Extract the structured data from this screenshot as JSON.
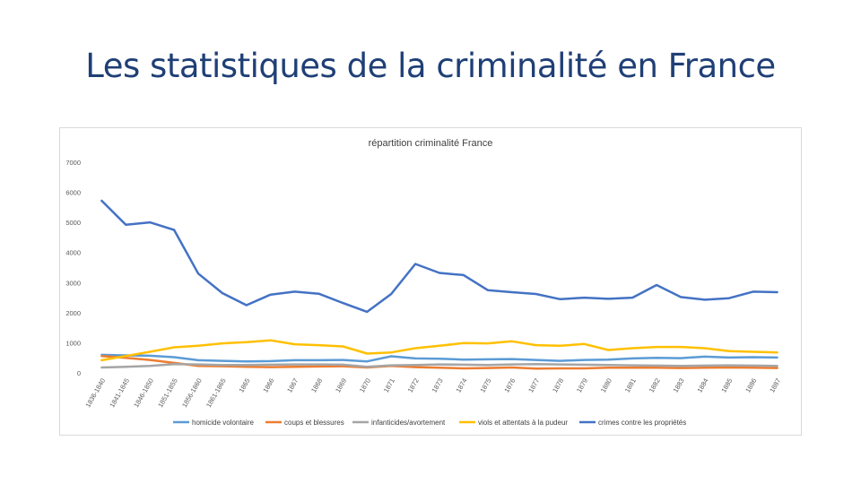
{
  "slide": {
    "title": "Les statistiques de la criminalité en France"
  },
  "chart_data": {
    "type": "line",
    "title": "répartition criminalité France",
    "ylim": [
      0,
      7000
    ],
    "yticks": [
      0,
      1000,
      2000,
      3000,
      4000,
      5000,
      6000,
      7000
    ],
    "grid": false,
    "legend_position": "bottom",
    "categories": [
      "1836-1840",
      "1841-1845",
      "1846-1850",
      "1851-1855",
      "1856-1860",
      "1861-1865",
      "1865",
      "1866",
      "1867",
      "1868",
      "1869",
      "1870",
      "1871",
      "1872",
      "1873",
      "1874",
      "1875",
      "1876",
      "1877",
      "1878",
      "1879",
      "1880",
      "1881",
      "1882",
      "1883",
      "1884",
      "1885",
      "1886",
      "1887"
    ],
    "series": [
      {
        "name": "homicide volontaire",
        "color": "#5b9bd5",
        "values": [
          600,
          580,
          570,
          520,
          420,
          400,
          380,
          390,
          420,
          420,
          430,
          380,
          550,
          480,
          470,
          440,
          450,
          460,
          430,
          400,
          430,
          440,
          480,
          500,
          490,
          540,
          510,
          520,
          510
        ]
      },
      {
        "name": "coups et blessures",
        "color": "#ed7d31",
        "values": [
          560,
          500,
          430,
          330,
          230,
          220,
          200,
          190,
          200,
          210,
          220,
          180,
          230,
          190,
          170,
          150,
          160,
          180,
          140,
          150,
          150,
          170,
          170,
          170,
          160,
          170,
          180,
          170,
          160
        ]
      },
      {
        "name": "infanticides/avortement",
        "color": "#a5a5a5",
        "values": [
          180,
          200,
          230,
          290,
          280,
          260,
          260,
          270,
          280,
          280,
          270,
          200,
          250,
          260,
          280,
          270,
          260,
          280,
          290,
          280,
          270,
          260,
          250,
          240,
          230,
          240,
          250,
          240,
          230
        ]
      },
      {
        "name": "viols et attentats à la pudeur",
        "color": "#ffc000",
        "values": [
          420,
          560,
          700,
          850,
          900,
          980,
          1020,
          1080,
          950,
          920,
          880,
          640,
          680,
          820,
          900,
          990,
          980,
          1050,
          920,
          900,
          960,
          760,
          820,
          860,
          860,
          820,
          720,
          700,
          680
        ]
      },
      {
        "name": "crimes contre les propriétés",
        "color": "#4472c4",
        "values": [
          5720,
          4920,
          5000,
          4750,
          3300,
          2650,
          2250,
          2600,
          2700,
          2630,
          2320,
          2030,
          2620,
          3620,
          3320,
          3250,
          2750,
          2680,
          2620,
          2450,
          2500,
          2460,
          2500,
          2920,
          2520,
          2430,
          2480,
          2700,
          2680
        ]
      }
    ]
  }
}
